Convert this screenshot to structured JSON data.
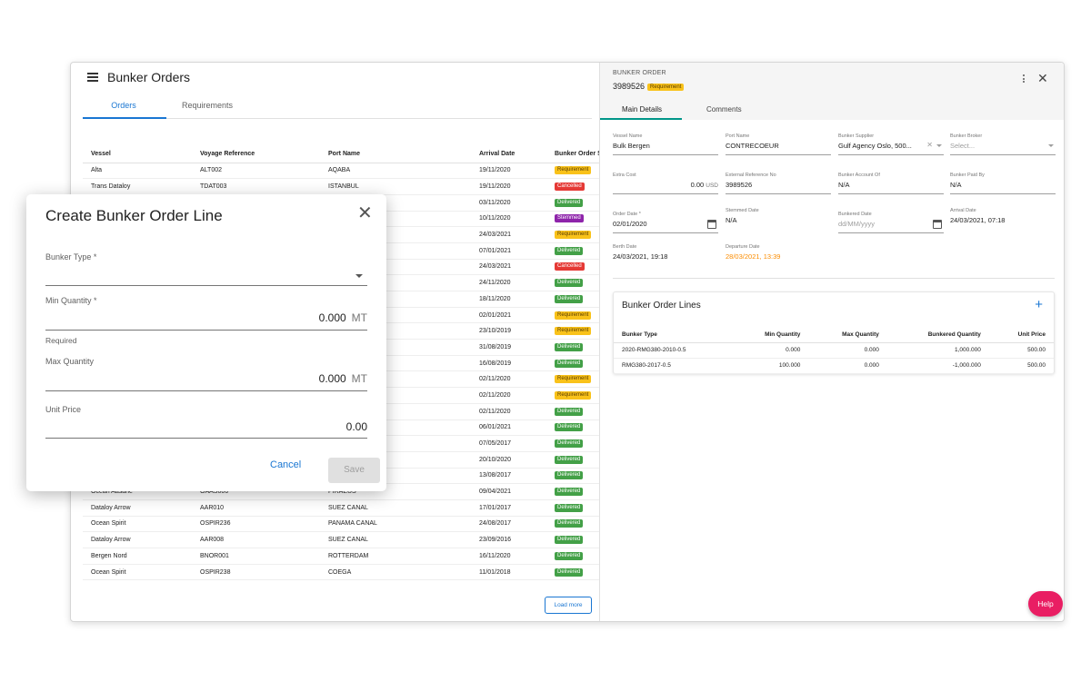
{
  "app": {
    "title": "Bunker Orders",
    "tabs": [
      "Orders",
      "Requirements"
    ]
  },
  "orders_table": {
    "columns": [
      "Vessel",
      "Voyage Reference",
      "Port Name",
      "Arrival Date",
      "Bunker Order S"
    ],
    "rows": [
      {
        "vessel": "Alta",
        "voyage": "ALT002",
        "port": "AQABA",
        "arrival": "19/11/2020",
        "arrival_color": "",
        "status": "Requirement",
        "status_kind": "req"
      },
      {
        "vessel": "Trans Dataloy",
        "voyage": "TDAT003",
        "port": "ISTANBUL",
        "arrival": "19/11/2020",
        "arrival_color": "",
        "status": "Cancelled",
        "status_kind": "can"
      },
      {
        "vessel": "",
        "voyage": "",
        "port": "",
        "arrival": "03/11/2020",
        "arrival_color": "",
        "status": "Delivered",
        "status_kind": "del"
      },
      {
        "vessel": "",
        "voyage": "",
        "port": "",
        "arrival": "10/11/2020",
        "arrival_color": "",
        "status": "Stemmed",
        "status_kind": "stm"
      },
      {
        "vessel": "",
        "voyage": "",
        "port": "",
        "arrival": "24/03/2021",
        "arrival_color": "",
        "status": "Requirement",
        "status_kind": "req"
      },
      {
        "vessel": "",
        "voyage": "",
        "port": "",
        "arrival": "07/01/2021",
        "arrival_color": "",
        "status": "Delivered",
        "status_kind": "del"
      },
      {
        "vessel": "",
        "voyage": "",
        "port": "",
        "arrival": "24/03/2021",
        "arrival_color": "",
        "status": "Cancelled",
        "status_kind": "can"
      },
      {
        "vessel": "",
        "voyage": "",
        "port": "",
        "arrival": "24/11/2020",
        "arrival_color": "",
        "status": "Delivered",
        "status_kind": "del"
      },
      {
        "vessel": "",
        "voyage": "",
        "port": "",
        "arrival": "18/11/2020",
        "arrival_color": "",
        "status": "Delivered",
        "status_kind": "del"
      },
      {
        "vessel": "",
        "voyage": "",
        "port": "",
        "arrival": "02/01/2021",
        "arrival_color": "blue",
        "status": "Requirement",
        "status_kind": "req"
      },
      {
        "vessel": "",
        "voyage": "",
        "port": "",
        "arrival": "23/10/2019",
        "arrival_color": "",
        "status": "Requirement",
        "status_kind": "req"
      },
      {
        "vessel": "",
        "voyage": "",
        "port": "",
        "arrival": "31/08/2019",
        "arrival_color": "blue",
        "status": "Delivered",
        "status_kind": "del"
      },
      {
        "vessel": "",
        "voyage": "",
        "port": "",
        "arrival": "16/08/2019",
        "arrival_color": "",
        "status": "Delivered",
        "status_kind": "del"
      },
      {
        "vessel": "",
        "voyage": "",
        "port": "",
        "arrival": "02/11/2020",
        "arrival_color": "",
        "status": "Requirement",
        "status_kind": "req"
      },
      {
        "vessel": "",
        "voyage": "",
        "port": "",
        "arrival": "02/11/2020",
        "arrival_color": "",
        "status": "Requirement",
        "status_kind": "req"
      },
      {
        "vessel": "",
        "voyage": "",
        "port": "",
        "arrival": "02/11/2020",
        "arrival_color": "",
        "status": "Delivered",
        "status_kind": "del"
      },
      {
        "vessel": "",
        "voyage": "",
        "port": "",
        "arrival": "06/01/2021",
        "arrival_color": "",
        "status": "Delivered",
        "status_kind": "del"
      },
      {
        "vessel": "",
        "voyage": "",
        "port": "",
        "arrival": "07/05/2017",
        "arrival_color": "orange",
        "status": "Delivered",
        "status_kind": "del"
      },
      {
        "vessel": "",
        "voyage": "",
        "port": "",
        "arrival": "20/10/2020",
        "arrival_color": "",
        "status": "Delivered",
        "status_kind": "del"
      },
      {
        "vessel": "",
        "voyage": "",
        "port": "",
        "arrival": "13/08/2017",
        "arrival_color": "orange",
        "status": "Delivered",
        "status_kind": "del"
      },
      {
        "vessel": "Ocean Aasane",
        "voyage": "OAAS006",
        "port": "PIRAEUS",
        "arrival": "09/04/2021",
        "arrival_color": "",
        "status": "Delivered",
        "status_kind": "del"
      },
      {
        "vessel": "Dataloy Arrow",
        "voyage": "AAR010",
        "port": "SUEZ CANAL",
        "arrival": "17/01/2017",
        "arrival_color": "",
        "status": "Delivered",
        "status_kind": "del"
      },
      {
        "vessel": "Ocean Spirit",
        "voyage": "OSPIR236",
        "port": "PANAMA CANAL",
        "arrival": "24/08/2017",
        "arrival_color": "",
        "status": "Delivered",
        "status_kind": "del"
      },
      {
        "vessel": "Dataloy Arrow",
        "voyage": "AAR008",
        "port": "SUEZ CANAL",
        "arrival": "23/09/2016",
        "arrival_color": "",
        "status": "Delivered",
        "status_kind": "del"
      },
      {
        "vessel": "Bergen Nord",
        "voyage": "BNOR001",
        "port": "ROTTERDAM",
        "arrival": "16/11/2020",
        "arrival_color": "",
        "status": "Delivered",
        "status_kind": "del"
      },
      {
        "vessel": "Ocean Spirit",
        "voyage": "OSPIR238",
        "port": "COEGA",
        "arrival": "11/01/2018",
        "arrival_color": "",
        "status": "Delivered",
        "status_kind": "del"
      }
    ],
    "load_more_label": "Load more"
  },
  "detail": {
    "header_label": "BUNKER ORDER",
    "order_number": "3989526",
    "order_status": "Requirement",
    "tabs": [
      "Main Details",
      "Comments"
    ],
    "fields": {
      "vessel_name": {
        "label": "Vessel Name",
        "value": "Bulk Bergen"
      },
      "port_name": {
        "label": "Port Name",
        "value": "CONTRECOEUR"
      },
      "bunker_supplier": {
        "label": "Bunker Supplier",
        "value": "Gulf Agency Oslo, 500..."
      },
      "bunker_broker": {
        "label": "Bunker Broker",
        "placeholder": "Select..."
      },
      "extra_cost": {
        "label": "Extra Cost",
        "value": "0.00",
        "unit": "USD"
      },
      "external_ref": {
        "label": "External Reference No",
        "value": "3989526"
      },
      "bunker_account_of": {
        "label": "Bunker Account Of",
        "value": "N/A"
      },
      "bunker_paid_by": {
        "label": "Bunker Paid By",
        "value": "N/A"
      },
      "order_date": {
        "label": "Order Date *",
        "value": "02/01/2020"
      },
      "stemmed_date": {
        "label": "Stemmed Date",
        "value": "N/A"
      },
      "bunkered_date": {
        "label": "Bunkered Date",
        "placeholder": "dd/MM/yyyy"
      },
      "arrival_date": {
        "label": "Arrival Date",
        "value": "24/03/2021, 07:18"
      },
      "berth_date": {
        "label": "Berth Date",
        "value": "24/03/2021, 19:18"
      },
      "departure_date": {
        "label": "Departure Date",
        "value": "28/03/2021, 13:39"
      }
    },
    "lines": {
      "title": "Bunker Order Lines",
      "columns": [
        "Bunker Type",
        "Min Quantity",
        "Max Quantity",
        "Bunkered Quantity",
        "Unit Price"
      ],
      "rows": [
        [
          "2020-RMG380-2010-0.5",
          "0.000",
          "0.000",
          "1,000.000",
          "500.00"
        ],
        [
          "RMG380-2017-0.5",
          "100.000",
          "0.000",
          "-1,000.000",
          "500.00"
        ]
      ]
    },
    "help_label": "Help"
  },
  "dialog": {
    "title": "Create Bunker Order Line",
    "bunker_type_label": "Bunker Type *",
    "min_quantity_label": "Min Quantity *",
    "min_quantity_value": "0.000",
    "min_quantity_unit": "MT",
    "required_hint": "Required",
    "max_quantity_label": "Max Quantity",
    "max_quantity_value": "0.000",
    "max_quantity_unit": "MT",
    "unit_price_label": "Unit Price",
    "unit_price_value": "0.00",
    "cancel_label": "Cancel",
    "save_label": "Save"
  },
  "colors": {
    "primary": "#1976d2",
    "requirement": "#f9c21a",
    "cancelled": "#e53935",
    "delivered": "#43a047",
    "stemmed": "#8e24aa",
    "help": "#e91e63"
  }
}
